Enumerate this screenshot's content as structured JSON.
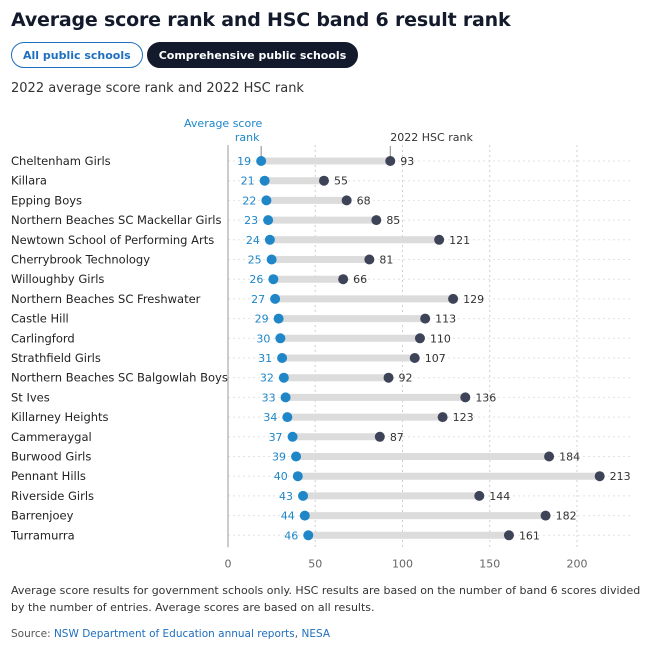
{
  "title": "Average score rank and HSC band 6 result rank",
  "tabs": [
    {
      "label": "All public schools"
    },
    {
      "label": "Comprehensive public schools"
    }
  ],
  "subtitle": "2022 average score rank and 2022 HSC rank",
  "colors": {
    "avg_dot": "#1f86c8",
    "hsc_dot": "#3e4458",
    "bar": "#dcdcdc",
    "grid": "#d0d0d0",
    "axis": "#999999"
  },
  "chart_data": {
    "type": "dot-range",
    "series": [
      {
        "name": "Average score rank",
        "color": "#1f86c8"
      },
      {
        "name": "2022 HSC rank",
        "color": "#3e4458"
      }
    ],
    "legend_avg_line1": "Average score",
    "legend_avg_line2": "rank",
    "legend_hsc": "2022 HSC rank",
    "categories": [
      "Cheltenham Girls",
      "Killara",
      "Epping Boys",
      "Northern Beaches SC Mackellar Girls",
      "Newtown School of Performing Arts",
      "Cherrybrook Technology",
      "Willoughby Girls",
      "Northern Beaches SC Freshwater",
      "Castle Hill",
      "Carlingford",
      "Strathfield Girls",
      "Northern Beaches SC Balgowlah Boys",
      "St Ives",
      "Killarney Heights",
      "Cammeraygal",
      "Burwood Girls",
      "Pennant Hills",
      "Riverside Girls",
      "Barrenjoey",
      "Turramurra"
    ],
    "avg_rank": [
      19,
      21,
      22,
      23,
      24,
      25,
      26,
      27,
      29,
      30,
      31,
      32,
      33,
      34,
      37,
      39,
      40,
      43,
      44,
      46
    ],
    "hsc_rank": [
      93,
      55,
      68,
      85,
      121,
      81,
      66,
      129,
      113,
      110,
      107,
      92,
      136,
      123,
      87,
      184,
      213,
      144,
      182,
      161
    ],
    "x_ticks": [
      0,
      50,
      100,
      150,
      200
    ],
    "xlim": [
      0,
      230
    ]
  },
  "footnote": "Average score results for government schools only. HSC results are based on the number of band 6 scores divided by the number of entries. Average scores are based on all results.",
  "source": {
    "prefix": "Source:",
    "link1": "NSW Department of Education annual reports",
    "sep": ",",
    "link2": "NESA"
  }
}
